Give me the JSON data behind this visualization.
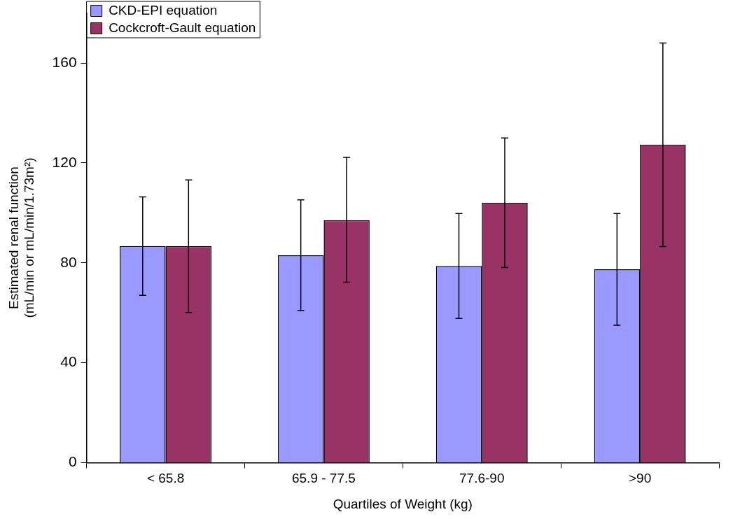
{
  "chart_data": {
    "type": "bar",
    "xlabel": "Quartiles of Weight (kg)",
    "ylabel": "Estimated renal function\n(mL/min or mL/min/1.73m²)",
    "categories": [
      "< 65.8",
      "65.9 - 77.5",
      "77.6-90",
      ">90"
    ],
    "series": [
      {
        "name": "CKD-EPI equation",
        "color": "#9999ff",
        "values": [
          86.7,
          83,
          78.7,
          77.4
        ],
        "errors": [
          [
            67,
            106.4
          ],
          [
            60.9,
            105.2
          ],
          [
            57.7,
            99.7
          ],
          [
            55,
            99.7
          ]
        ]
      },
      {
        "name": "Cockcroft-Gault equation",
        "color": "#993366",
        "values": [
          86.7,
          97.1,
          104.1,
          127.3
        ],
        "errors": [
          [
            60.1,
            113.2
          ],
          [
            72.2,
            122.2
          ],
          [
            78.1,
            130
          ],
          [
            86.5,
            168
          ]
        ]
      }
    ],
    "ylim": [
      0,
      180
    ],
    "yticks": [
      0,
      40,
      80,
      120,
      160
    ],
    "grid": false,
    "legend": "top left"
  }
}
